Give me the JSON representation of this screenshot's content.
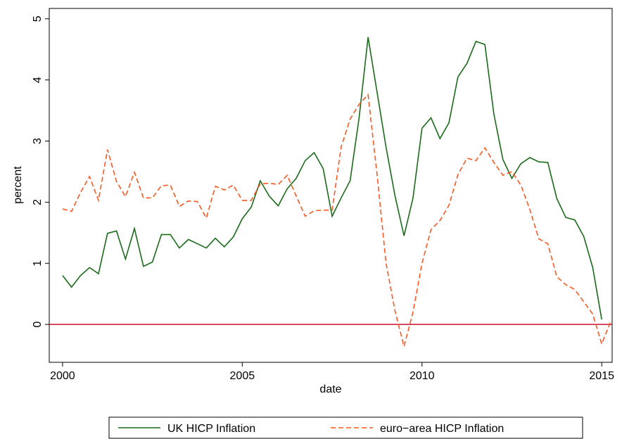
{
  "chart_data": {
    "type": "line",
    "x": [
      2000,
      2000.25,
      2000.5,
      2000.75,
      2001,
      2001.25,
      2001.5,
      2001.75,
      2002,
      2002.25,
      2002.5,
      2002.75,
      2003,
      2003.25,
      2003.5,
      2003.75,
      2004,
      2004.25,
      2004.5,
      2004.75,
      2005,
      2005.25,
      2005.5,
      2005.75,
      2006,
      2006.25,
      2006.5,
      2006.75,
      2007,
      2007.25,
      2007.5,
      2007.75,
      2008,
      2008.25,
      2008.5,
      2008.75,
      2009,
      2009.25,
      2009.5,
      2009.75,
      2010,
      2010.25,
      2010.5,
      2010.75,
      2011,
      2011.25,
      2011.5,
      2011.75,
      2012,
      2012.25,
      2012.5,
      2012.75,
      2013,
      2013.25,
      2013.5,
      2013.75,
      2014,
      2014.25,
      2014.5,
      2014.75,
      2015,
      2015.25
    ],
    "series": [
      {
        "name": "UK HICP Inflation",
        "color": "#1a6b1a",
        "dash": false,
        "values": [
          0.8,
          0.61,
          0.8,
          0.93,
          0.83,
          1.49,
          1.53,
          1.07,
          1.57,
          0.95,
          1.02,
          1.47,
          1.47,
          1.25,
          1.39,
          1.32,
          1.25,
          1.41,
          1.27,
          1.43,
          1.73,
          1.92,
          2.35,
          2.1,
          1.94,
          2.22,
          2.39,
          2.68,
          2.81,
          2.55,
          1.77,
          2.07,
          2.35,
          3.38,
          4.7,
          3.8,
          2.9,
          2.1,
          1.45,
          2.07,
          3.21,
          3.38,
          3.04,
          3.3,
          4.05,
          4.27,
          4.63,
          4.58,
          3.44,
          2.7,
          2.39,
          2.63,
          2.73,
          2.66,
          2.65,
          2.06,
          1.75,
          1.71,
          1.44,
          0.93,
          0.08,
          null
        ]
      },
      {
        "name": "euro−area HICP Inflation",
        "color": "#ff5722",
        "dash": true,
        "values": [
          1.89,
          1.85,
          2.16,
          2.42,
          2.03,
          2.86,
          2.34,
          2.09,
          2.49,
          2.07,
          2.07,
          2.27,
          2.28,
          1.93,
          2.02,
          2.01,
          1.74,
          2.26,
          2.2,
          2.28,
          2.03,
          2.03,
          2.3,
          2.31,
          2.29,
          2.44,
          2.1,
          1.77,
          1.86,
          1.87,
          1.87,
          2.9,
          3.36,
          3.6,
          3.76,
          2.45,
          1.0,
          0.22,
          -0.36,
          0.2,
          1.0,
          1.55,
          1.7,
          1.95,
          2.45,
          2.72,
          2.68,
          2.89,
          2.65,
          2.44,
          2.5,
          2.28,
          1.88,
          1.4,
          1.32,
          0.78,
          0.65,
          0.57,
          0.37,
          0.17,
          -0.32,
          0.05
        ]
      }
    ],
    "hline": {
      "value": 0,
      "color": "#c8102e"
    },
    "x_label": "date",
    "y_label": "percent",
    "xlim": [
      1999.63,
      2015.29
    ],
    "xticks": [
      2000,
      2005,
      2010,
      2015
    ],
    "ylim": [
      -0.62,
      5.17
    ],
    "yticks": [
      0,
      1,
      2,
      3,
      4,
      5
    ],
    "legend": "bottom"
  }
}
